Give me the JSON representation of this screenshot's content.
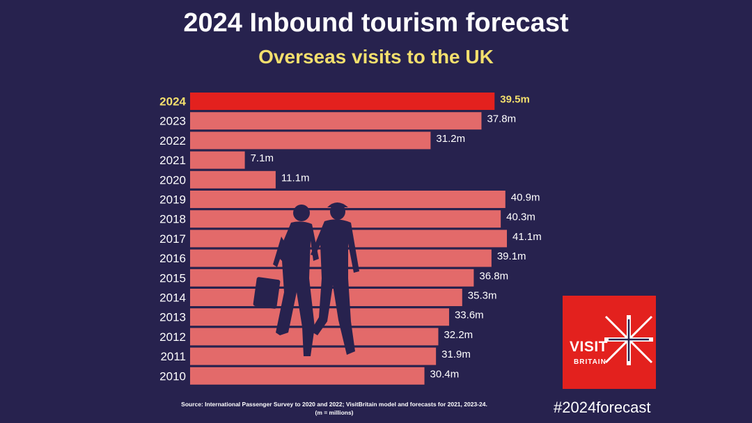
{
  "header": {
    "title": "2024 Inbound tourism forecast",
    "subtitle": "Overseas visits to the UK"
  },
  "chart_data": {
    "type": "bar",
    "orientation": "horizontal",
    "title": "2024 Inbound tourism forecast",
    "subtitle": "Overseas visits to the UK",
    "categories": [
      "2024",
      "2023",
      "2022",
      "2021",
      "2020",
      "2019",
      "2018",
      "2017",
      "2016",
      "2015",
      "2014",
      "2013",
      "2012",
      "2011",
      "2010"
    ],
    "values": [
      39.5,
      37.8,
      31.2,
      7.1,
      11.1,
      40.9,
      40.3,
      41.1,
      39.1,
      36.8,
      35.3,
      33.6,
      32.2,
      31.9,
      30.4
    ],
    "value_labels": [
      "39.5m",
      "37.8m",
      "31.2m",
      "7.1m",
      "11.1m",
      "40.9m",
      "40.3m",
      "41.1m",
      "39.1m",
      "36.8m",
      "35.3m",
      "33.6m",
      "32.2m",
      "31.9m",
      "30.4m"
    ],
    "highlight_category": "2024",
    "colors": {
      "highlight": "#e3211e",
      "bar": "#e36a6a",
      "highlight_label": "#f3df6d",
      "label": "#ffffff"
    },
    "xlim": [
      0,
      41.1
    ],
    "grid": false,
    "legend": "none"
  },
  "footer": {
    "source_line1": "Source: International Passenger Survey to 2020 and 2022; VisitBritain model and forecasts for 2021, 2023-24.",
    "source_line2": "(m = millions)",
    "hashtag": "#2024forecast"
  },
  "logo": {
    "line1": "VISIT",
    "line2": "BRITAIN"
  },
  "illustration": {
    "icon": "walking-couple-silhouette-icon",
    "color": "#27224e"
  }
}
